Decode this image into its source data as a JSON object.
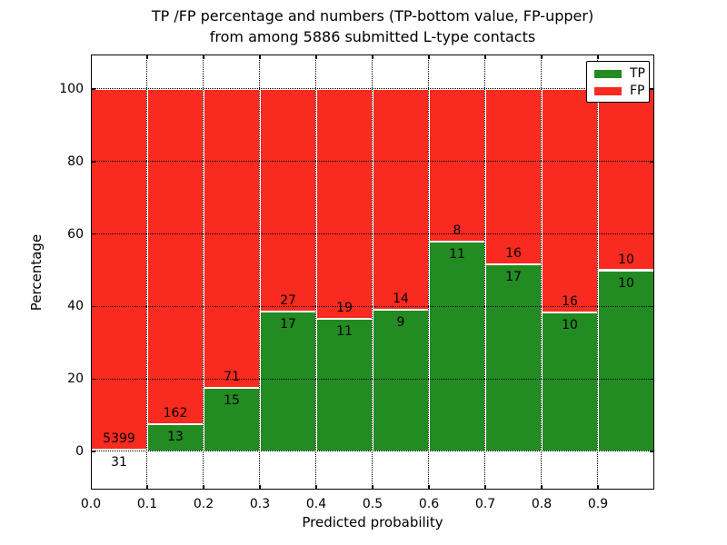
{
  "chart_data": {
    "type": "bar",
    "stacked": true,
    "normalized_to_percent": true,
    "title_line1": "TP /FP percentage and numbers (TP-bottom value, FP-upper)",
    "title_line2": "from among 5886 submitted L-type contacts",
    "xlabel": "Predicted probability",
    "ylabel": "Percentage",
    "xlim": [
      0.0,
      1.0
    ],
    "ylim": [
      -10.5,
      109.5
    ],
    "bin_width": 0.1,
    "grid": true,
    "grid_style": "dotted",
    "legend_position": "upper right",
    "xticks": [
      "0.0",
      "0.1",
      "0.2",
      "0.3",
      "0.4",
      "0.5",
      "0.6",
      "0.7",
      "0.8",
      "0.9"
    ],
    "yticks": [
      0,
      20,
      40,
      60,
      80,
      100
    ],
    "categories": [
      "0.0-0.1",
      "0.1-0.2",
      "0.2-0.3",
      "0.3-0.4",
      "0.4-0.5",
      "0.5-0.6",
      "0.6-0.7",
      "0.7-0.8",
      "0.8-0.9",
      "0.9-1.0"
    ],
    "series": [
      {
        "name": "TP",
        "color": "#228b22",
        "counts": [
          31,
          13,
          15,
          17,
          11,
          9,
          11,
          17,
          10,
          10
        ]
      },
      {
        "name": "FP",
        "color": "#f92a1f",
        "counts": [
          5399,
          162,
          71,
          27,
          19,
          14,
          8,
          16,
          16,
          10
        ]
      }
    ],
    "tp_percent": [
      0.57,
      7.43,
      17.44,
      38.64,
      36.67,
      39.13,
      57.89,
      51.52,
      38.46,
      50.0
    ],
    "bar_edge_color": "#ffffff",
    "text_color": "#000000"
  }
}
